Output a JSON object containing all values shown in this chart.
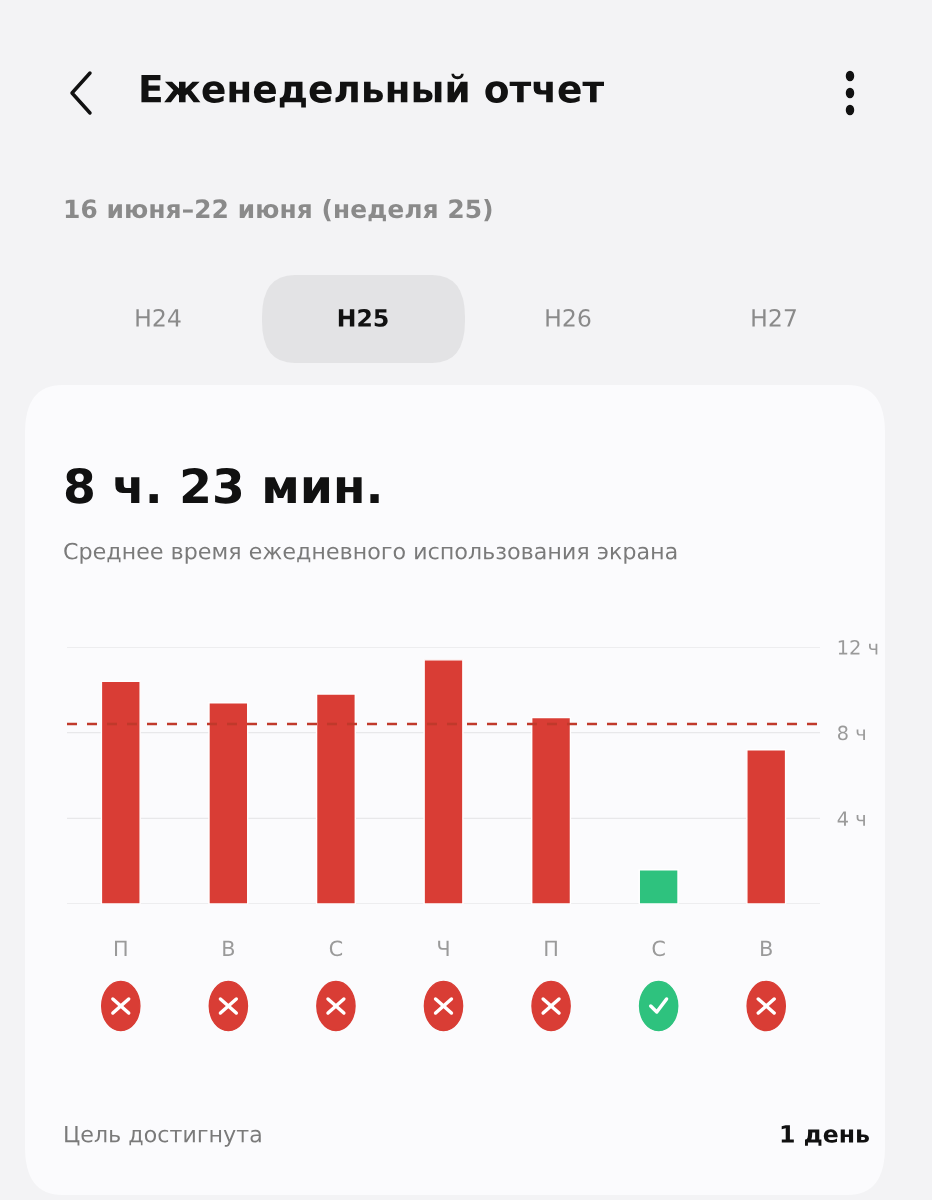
{
  "chart_data": {
    "type": "bar",
    "title": "8 ч. 23 мин.",
    "subtitle": "Среднее время ежедневного использования экрана",
    "categories": [
      "П",
      "В",
      "С",
      "Ч",
      "П",
      "С",
      "В"
    ],
    "values": [
      10.4,
      9.4,
      9.8,
      11.4,
      8.7,
      1.6,
      7.2
    ],
    "colors": [
      "#d93d35",
      "#d93d35",
      "#d93d35",
      "#d93d35",
      "#d93d35",
      "#2ec27e",
      "#d93d35"
    ],
    "ylim": [
      0,
      12
    ],
    "yticks": [
      {
        "value": 0,
        "label": null
      },
      {
        "value": 4,
        "label": "4 ч"
      },
      {
        "value": 8,
        "label": "8 ч"
      },
      {
        "value": 12,
        "label": "12 ч"
      }
    ],
    "grid": "y",
    "ref_lines": [
      {
        "axis": "y",
        "value": 8.4,
        "color": "#c0392b",
        "line_style": "dashed"
      }
    ],
    "annotations": [
      "Еженедельный отчет",
      "16 июня–22 июня (неделя 25)",
      "Н24",
      "Н25",
      "Н26",
      "Н27",
      "Цель достигнута",
      "1 день"
    ]
  }
}
